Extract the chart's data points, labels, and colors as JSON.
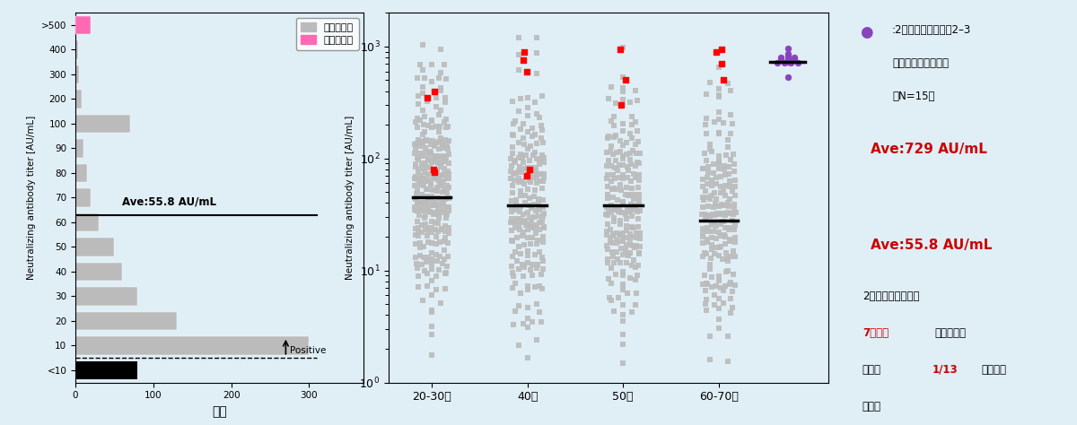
{
  "hist_labels": [
    "<10",
    "10",
    "20",
    "30",
    "40",
    "50",
    "60",
    "70",
    "80",
    "90",
    "100",
    "200",
    "300",
    "400",
    ">500"
  ],
  "hist_gray": [
    0,
    300,
    130,
    80,
    60,
    50,
    30,
    20,
    15,
    10,
    70,
    8,
    5,
    3,
    5
  ],
  "hist_pink": [
    0,
    0,
    0,
    0,
    0,
    0,
    0,
    0,
    0,
    0,
    0,
    0,
    0,
    0,
    20
  ],
  "hist_black": [
    80,
    0,
    0,
    0,
    0,
    0,
    0,
    0,
    0,
    0,
    0,
    0,
    0,
    0,
    0
  ],
  "ave_line_idx": 6.5,
  "ylabel_hist": "Neutralizing antibody titer [AU/mL]",
  "xlabel_hist": "人数",
  "legend_no_infection": "感染歴無し",
  "legend_infection": "感染歴有り",
  "ave_text": "Ave:55.8 AU/mL",
  "positive_text": "Positive",
  "dot_categories": [
    "20-30代",
    "40代",
    "50代",
    "60-70代"
  ],
  "dot_means": [
    45,
    38,
    38,
    28
  ],
  "ylabel_dot": "Neutralizing antibody titer [AU/mL]",
  "dot_ylim_min": 1.0,
  "dot_ylim_max": 2000,
  "purple_mean": 729,
  "purple_n": 15,
  "purple_color": "#8844BB",
  "red_color": "#CC0000",
  "gray_color": "#BBBBBB",
  "pink_color": "#FF69B4",
  "black_color": "#000000",
  "bg_color": "#E0EEF6",
  "annotation_purple": "：2回目ワクチン接種2–3\n  週間後の中和抗体価\n  （N=15）",
  "annotation_ave729": "Ave:729 AU/mL",
  "annotation_ave55": "Ave:55.8 AU/mL",
  "ann_line1": "2回目ワクチン接種",
  "ann_red1": "7ヶ月後",
  "ann_line2": "には中和抗",
  "ann_line3": "体価は",
  "ann_red2": "1/13",
  "ann_line4": "に低下し",
  "ann_line5": "ている"
}
